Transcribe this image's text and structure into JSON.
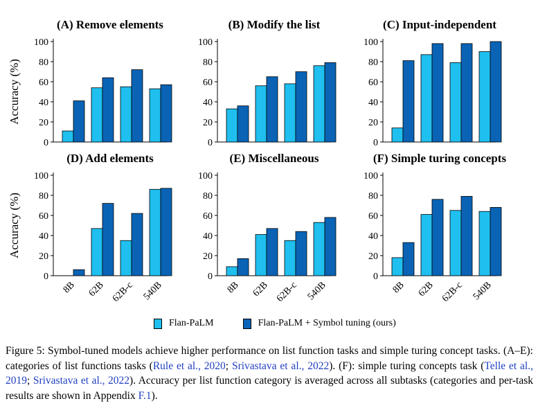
{
  "colors": {
    "flan": "#1fbfef",
    "symbol": "#0a63b5",
    "cite": "#1f3fbf"
  },
  "legend": {
    "flan": "Flan-PaLM",
    "symbol": "Flan-PaLM + Symbol tuning (ours)"
  },
  "chart_data": [
    {
      "type": "bar",
      "title": "(A) Remove elements",
      "ylabel": "Accuracy (%)",
      "ylim": [
        0,
        100
      ],
      "yticks": [
        0,
        20,
        40,
        60,
        80,
        100
      ],
      "categories": [
        "8B",
        "62B",
        "62B-c",
        "540B"
      ],
      "series": [
        {
          "name": "Flan-PaLM",
          "values": [
            11,
            54,
            55,
            53
          ]
        },
        {
          "name": "Flan-PaLM + Symbol tuning (ours)",
          "values": [
            41,
            64,
            72,
            57
          ]
        }
      ]
    },
    {
      "type": "bar",
      "title": "(B) Modify the list",
      "ylabel": "",
      "ylim": [
        0,
        100
      ],
      "yticks": [
        0,
        20,
        40,
        60,
        80,
        100
      ],
      "categories": [
        "8B",
        "62B",
        "62B-c",
        "540B"
      ],
      "series": [
        {
          "name": "Flan-PaLM",
          "values": [
            33,
            56,
            58,
            76
          ]
        },
        {
          "name": "Flan-PaLM + Symbol tuning (ours)",
          "values": [
            36,
            65,
            70,
            79
          ]
        }
      ]
    },
    {
      "type": "bar",
      "title": "(C) Input-independent",
      "ylabel": "",
      "ylim": [
        0,
        100
      ],
      "yticks": [
        0,
        20,
        40,
        60,
        80,
        100
      ],
      "categories": [
        "8B",
        "62B",
        "62B-c",
        "540B"
      ],
      "series": [
        {
          "name": "Flan-PaLM",
          "values": [
            14,
            87,
            79,
            90
          ]
        },
        {
          "name": "Flan-PaLM + Symbol tuning (ours)",
          "values": [
            81,
            98,
            98,
            100
          ]
        }
      ]
    },
    {
      "type": "bar",
      "title": "(D) Add elements",
      "ylabel": "Accuracy (%)",
      "ylim": [
        0,
        100
      ],
      "yticks": [
        0,
        20,
        40,
        60,
        80,
        100
      ],
      "categories": [
        "8B",
        "62B",
        "62B-c",
        "540B"
      ],
      "series": [
        {
          "name": "Flan-PaLM",
          "values": [
            0,
            47,
            35,
            86
          ]
        },
        {
          "name": "Flan-PaLM + Symbol tuning (ours)",
          "values": [
            6,
            72,
            62,
            87
          ]
        }
      ]
    },
    {
      "type": "bar",
      "title": "(E) Miscellaneous",
      "ylabel": "",
      "ylim": [
        0,
        100
      ],
      "yticks": [
        0,
        20,
        40,
        60,
        80,
        100
      ],
      "categories": [
        "8B",
        "62B",
        "62B-c",
        "540B"
      ],
      "series": [
        {
          "name": "Flan-PaLM",
          "values": [
            9,
            41,
            35,
            53
          ]
        },
        {
          "name": "Flan-PaLM + Symbol tuning (ours)",
          "values": [
            17,
            47,
            44,
            58
          ]
        }
      ]
    },
    {
      "type": "bar",
      "title": "(F) Simple turing concepts",
      "ylabel": "",
      "ylim": [
        0,
        100
      ],
      "yticks": [
        0,
        20,
        40,
        60,
        80,
        100
      ],
      "categories": [
        "8B",
        "62B",
        "62B-c",
        "540B"
      ],
      "series": [
        {
          "name": "Flan-PaLM",
          "values": [
            18,
            61,
            65,
            64
          ]
        },
        {
          "name": "Flan-PaLM + Symbol tuning (ours)",
          "values": [
            33,
            76,
            79,
            68
          ]
        }
      ]
    }
  ],
  "caption": {
    "t1": "Figure 5: Symbol-tuned models achieve higher performance on list function tasks and simple turing concept tasks. (A–E): categories of list functions tasks (",
    "c1": "Rule et al., 2020",
    "t2": "; ",
    "c2": "Srivastava et al., 2022",
    "t3": "). (F): simple turing concepts task (",
    "c3": "Telle et al., 2019",
    "t4": "; ",
    "c4": "Srivastava et al., 2022",
    "t5": "). Accuracy per list function category is averaged across all subtasks (categories and per-task results are shown in Appendix ",
    "c5": "F.1",
    "t6": ")."
  }
}
